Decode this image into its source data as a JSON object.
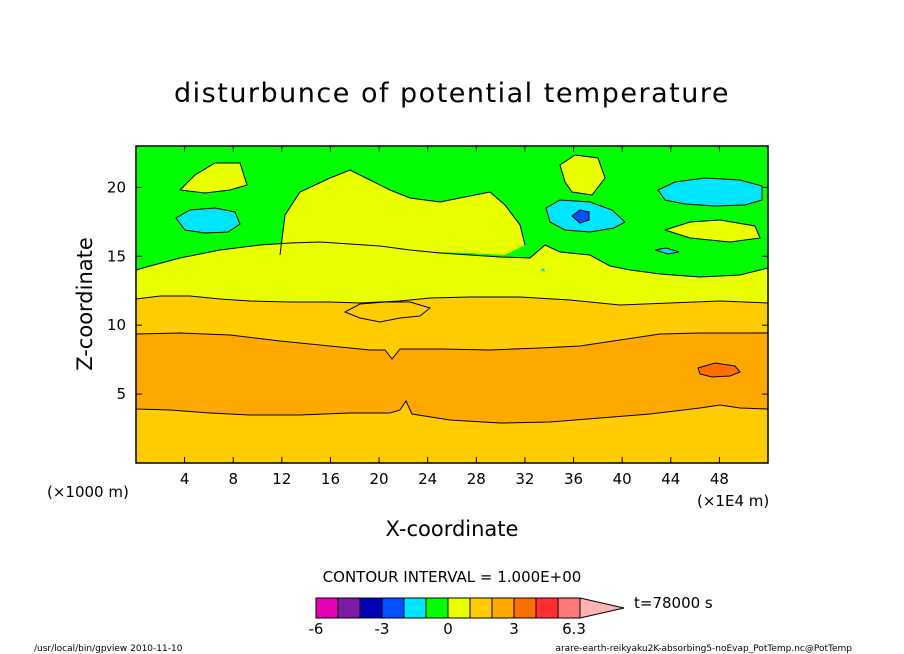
{
  "chart_data": {
    "type": "contour",
    "title": "disturbunce of potential temperature",
    "xlabel": "X-coordinate",
    "ylabel": "Z-coordinate",
    "x_unit": "(×1E4 m)",
    "y_unit": "(×1000 m)",
    "xlim": [
      0,
      52
    ],
    "ylim": [
      0,
      23
    ],
    "x_ticks": [
      4,
      8,
      12,
      16,
      20,
      24,
      28,
      32,
      36,
      40,
      44,
      48
    ],
    "y_ticks": [
      5,
      10,
      15,
      20
    ],
    "grid": false,
    "contour_interval_label": "CONTOUR INTERVAL = 1.000E+00",
    "time_label": "t=78000 s",
    "colorbar": {
      "levels": [
        -6,
        -5,
        -4,
        -3,
        -2,
        -1,
        0,
        1,
        2,
        3,
        4,
        5,
        6,
        6.3
      ],
      "colors": [
        "#e400b4",
        "#7d1aa6",
        "#0000b4",
        "#0050ff",
        "#00e6ff",
        "#00ff00",
        "#eaff00",
        "#ffcc00",
        "#ffa800",
        "#ff6e00",
        "#ff2f2f",
        "#ff7878",
        "#ffb4b4"
      ],
      "tick_labels": [
        "-6",
        "-3",
        "0",
        "3",
        "6.3"
      ]
    },
    "footer_left": "/usr/local/bin/gpview  2010-11-10",
    "footer_right": "arare-earth-reikyaku2K-absorbing5-noEvap_PotTemp.nc@PotTemp"
  }
}
